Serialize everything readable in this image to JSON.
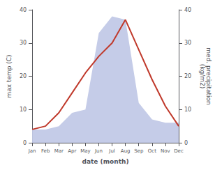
{
  "chart_data": {
    "type": "line",
    "categories": [
      "Jan",
      "Feb",
      "Mar",
      "Apr",
      "May",
      "Jun",
      "Jul",
      "Aug",
      "Sep",
      "Oct",
      "Nov",
      "Dec"
    ],
    "series": [
      {
        "type": "area",
        "axis": "y2",
        "color": "#c5cce8",
        "values": [
          4,
          4,
          5,
          9,
          10,
          33,
          38,
          37,
          12,
          7,
          6,
          6
        ]
      },
      {
        "type": "line",
        "color": "#c0392b",
        "values": [
          4,
          5,
          9,
          15,
          21,
          26,
          30,
          37,
          28,
          19,
          11,
          5
        ]
      }
    ],
    "xlabel": "date (month)",
    "ylabel": "max temp (C)",
    "y2label": "med. precipitation\n(kg/m2)",
    "ylim": [
      0,
      40
    ],
    "yticks": [
      0,
      10,
      20,
      30,
      40
    ],
    "y2lim": [
      0,
      40
    ],
    "y2ticks": [
      0,
      10,
      20,
      30,
      40
    ],
    "grid": false
  }
}
